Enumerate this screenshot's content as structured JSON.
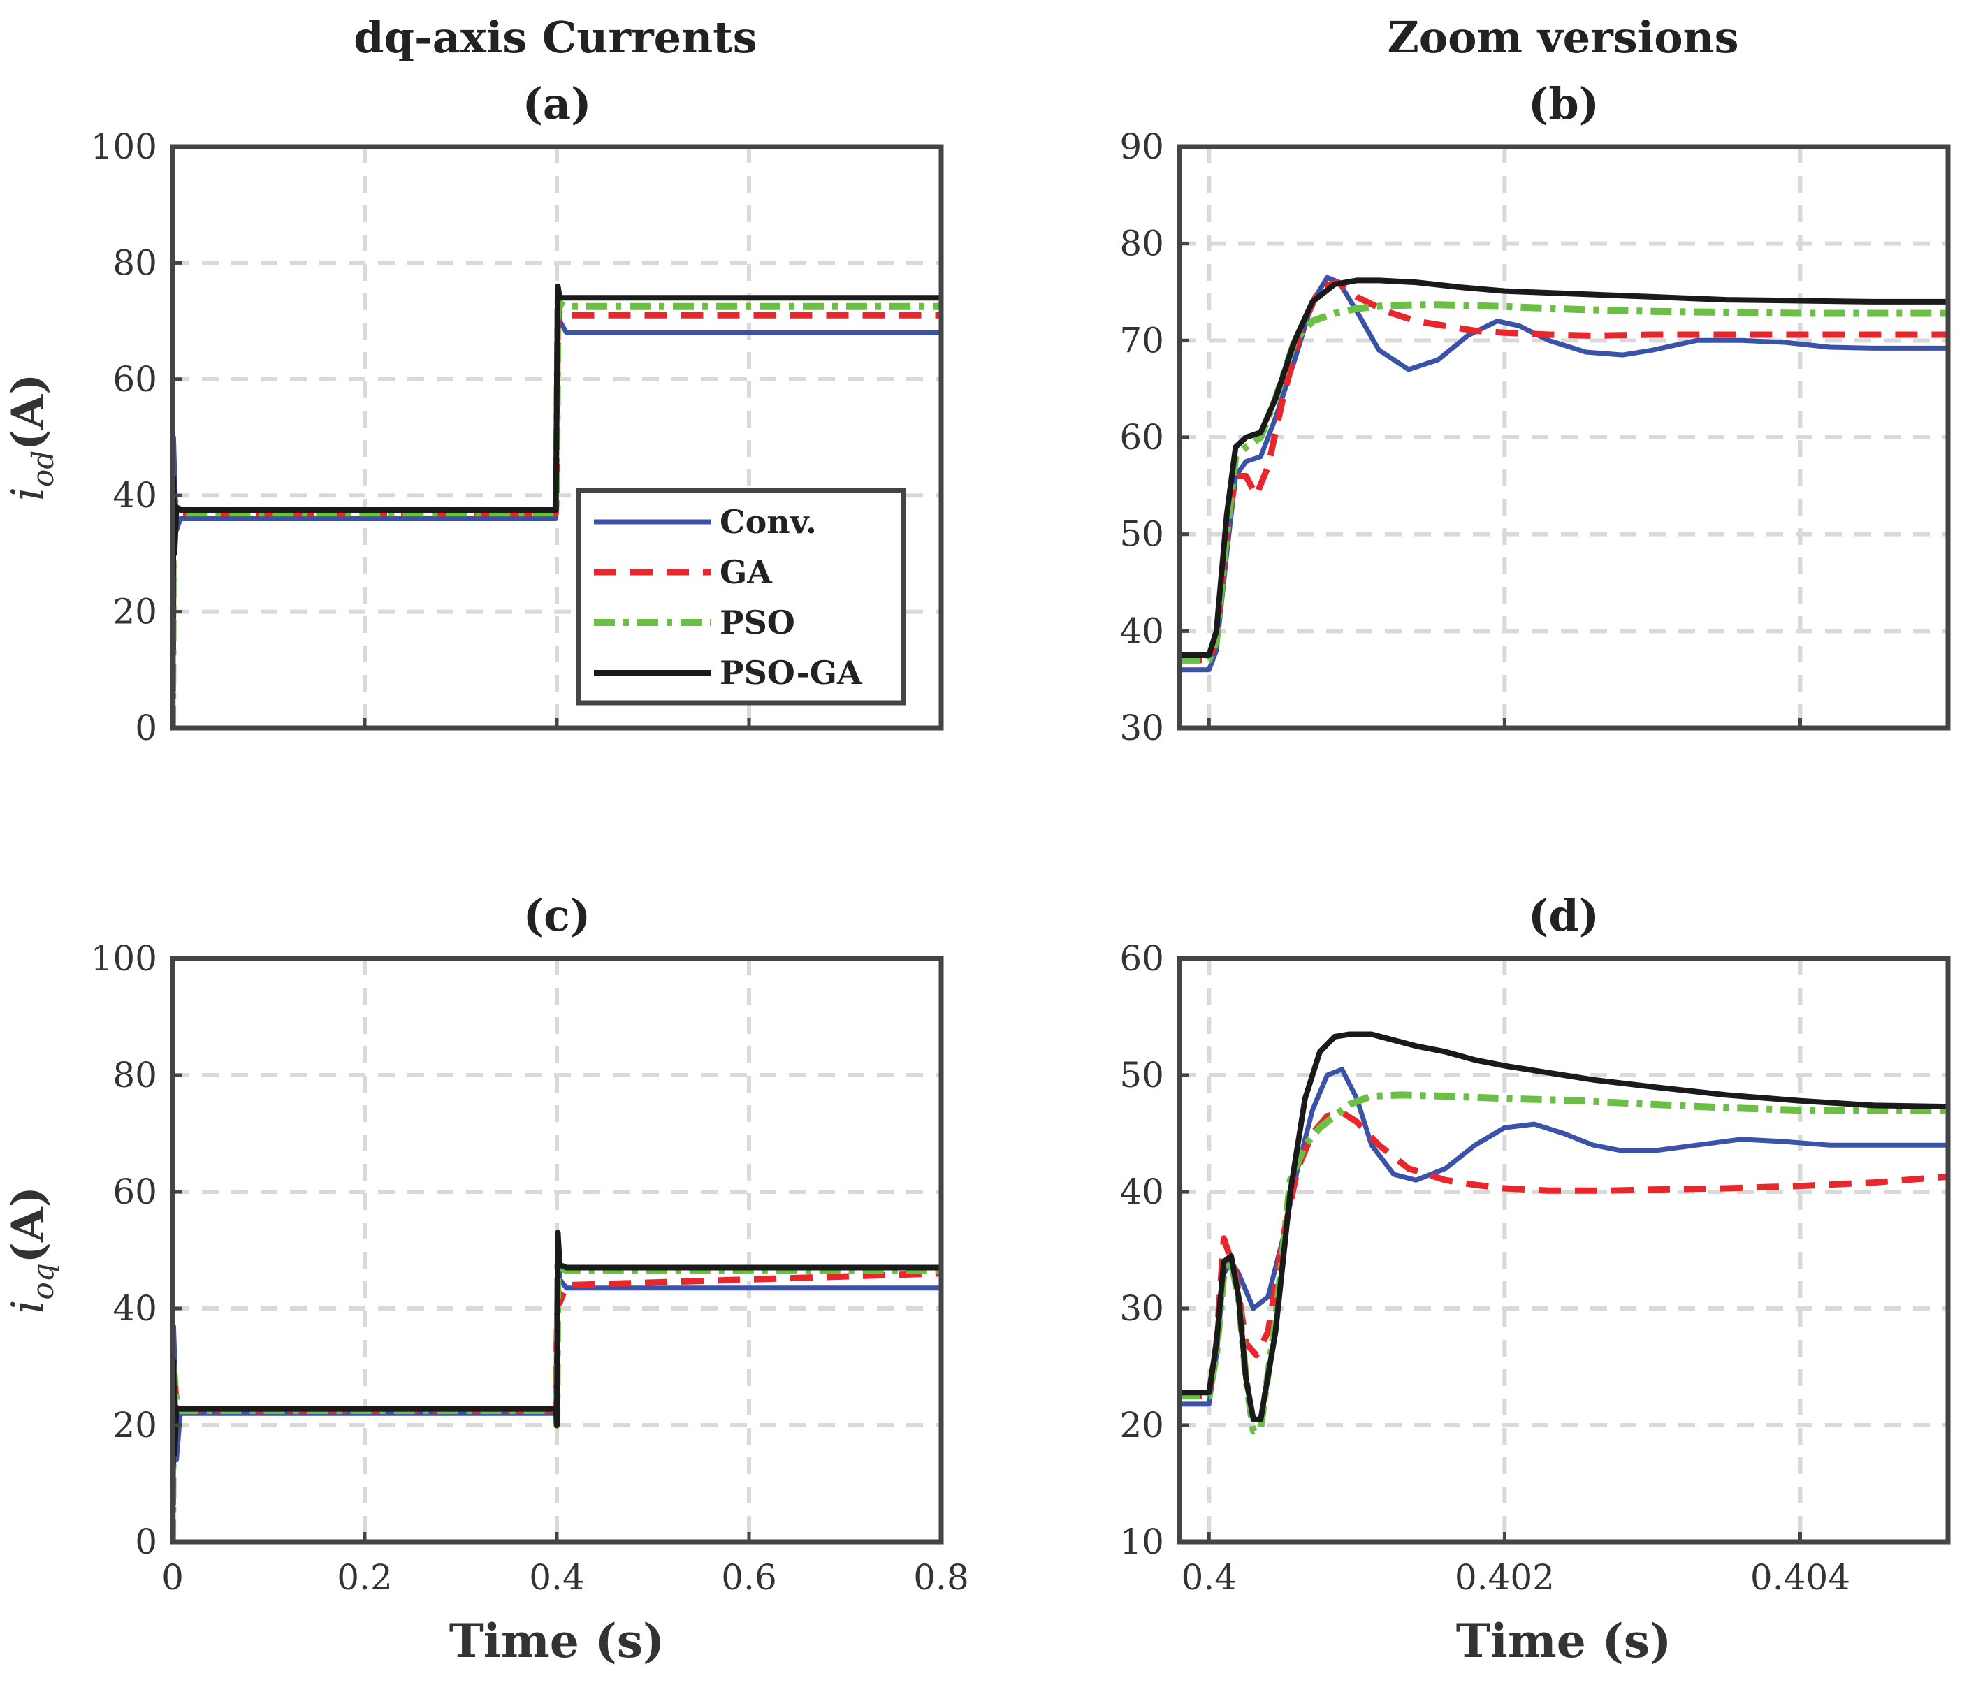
{
  "figure": {
    "column_titles": [
      "dq-axis Currents",
      "Zoom versions"
    ]
  },
  "colors": {
    "conv": "#3a52a8",
    "ga": "#e8262b",
    "pso": "#6cbf45",
    "psoga": "#1a1a1a"
  },
  "chart_data": [
    {
      "id": "a",
      "type": "line",
      "title": "(a)",
      "xlabel": "",
      "ylabel": {
        "var": "i",
        "sub": "od",
        "unit": "(A)"
      },
      "xlim": [
        0,
        0.8
      ],
      "ylim": [
        0,
        100
      ],
      "xticks": [
        0,
        0.2,
        0.4,
        0.6,
        0.8
      ],
      "xtick_labels": [
        "",
        "",
        "",
        "",
        ""
      ],
      "yticks": [
        0,
        20,
        40,
        60,
        80,
        100
      ],
      "ytick_labels": [
        "0",
        "20",
        "40",
        "60",
        "80",
        "100"
      ],
      "grid": true,
      "legend": {
        "position": "center-right",
        "entries": [
          "Conv.",
          "GA",
          "PSO",
          "PSO-GA"
        ]
      },
      "series": [
        {
          "name": "Conv.",
          "key": "conv",
          "x": [
            0,
            0.001,
            0.002,
            0.004,
            0.008,
            0.05,
            0.399,
            0.4,
            0.401,
            0.403,
            0.41,
            0.8
          ],
          "y": [
            0,
            50,
            44,
            34,
            36,
            36,
            36,
            50,
            75,
            70,
            68,
            68
          ]
        },
        {
          "name": "GA",
          "key": "ga",
          "x": [
            0,
            0.001,
            0.004,
            0.008,
            0.05,
            0.399,
            0.4,
            0.401,
            0.403,
            0.41,
            0.8
          ],
          "y": [
            0,
            40,
            38,
            37,
            37,
            37,
            48,
            74,
            71,
            71,
            71
          ]
        },
        {
          "name": "PSO",
          "key": "pso",
          "x": [
            0,
            0.001,
            0.004,
            0.008,
            0.05,
            0.399,
            0.4,
            0.401,
            0.403,
            0.41,
            0.8
          ],
          "y": [
            0,
            40,
            37,
            37,
            37,
            37,
            48,
            72,
            73,
            72.5,
            72.5
          ]
        },
        {
          "name": "PSO-GA",
          "key": "psoga",
          "x": [
            0,
            0.001,
            0.002,
            0.004,
            0.008,
            0.05,
            0.399,
            0.4,
            0.401,
            0.403,
            0.41,
            0.8
          ],
          "y": [
            0,
            43,
            30,
            38,
            37.5,
            37.5,
            37.5,
            60,
            76,
            74,
            74,
            74
          ]
        }
      ]
    },
    {
      "id": "b",
      "type": "line",
      "title": "(b)",
      "xlabel": "",
      "ylabel": null,
      "xlim": [
        0.3998,
        0.405
      ],
      "ylim": [
        30,
        90
      ],
      "xticks": [
        0.4,
        0.402,
        0.404
      ],
      "xtick_labels": [
        "",
        "",
        ""
      ],
      "yticks": [
        30,
        40,
        50,
        60,
        70,
        80,
        90
      ],
      "ytick_labels": [
        "30",
        "40",
        "50",
        "60",
        "70",
        "80",
        "90"
      ],
      "grid": true,
      "series": [
        {
          "name": "Conv.",
          "key": "conv",
          "x": [
            0.3998,
            0.4,
            0.40005,
            0.40012,
            0.40018,
            0.40025,
            0.40035,
            0.40045,
            0.40058,
            0.4007,
            0.4008,
            0.40088,
            0.401,
            0.40115,
            0.40135,
            0.40155,
            0.40175,
            0.40195,
            0.4021,
            0.4023,
            0.40255,
            0.4028,
            0.403,
            0.4033,
            0.4036,
            0.4039,
            0.4042,
            0.4045,
            0.4048,
            0.405
          ],
          "y": [
            36,
            36,
            38,
            48,
            56,
            57.5,
            58,
            62,
            68,
            74,
            76.5,
            76,
            73,
            69,
            67,
            68,
            70.5,
            72,
            71.5,
            70,
            68.8,
            68.5,
            69,
            70,
            70,
            69.8,
            69.3,
            69.2,
            69.2,
            69.2
          ]
        },
        {
          "name": "GA",
          "key": "ga",
          "x": [
            0.3998,
            0.4,
            0.40005,
            0.40012,
            0.40018,
            0.40025,
            0.40032,
            0.4004,
            0.4005,
            0.40062,
            0.40075,
            0.40087,
            0.401,
            0.4012,
            0.4014,
            0.4016,
            0.4018,
            0.402,
            0.4023,
            0.4026,
            0.403,
            0.4035,
            0.404,
            0.4045,
            0.405
          ],
          "y": [
            37,
            37,
            39,
            50,
            56,
            56,
            54,
            57,
            64,
            71,
            75.5,
            76,
            74.5,
            73,
            72,
            71.5,
            71,
            70.8,
            70.6,
            70.5,
            70.6,
            70.6,
            70.6,
            70.6,
            70.6
          ]
        },
        {
          "name": "PSO",
          "key": "pso",
          "x": [
            0.3998,
            0.4,
            0.40005,
            0.40012,
            0.40018,
            0.40025,
            0.40035,
            0.40045,
            0.40058,
            0.4007,
            0.40085,
            0.401,
            0.4012,
            0.4015,
            0.402,
            0.4025,
            0.403,
            0.4035,
            0.404,
            0.4045,
            0.405
          ],
          "y": [
            37,
            37,
            39,
            50,
            58,
            59,
            60,
            64,
            70,
            72,
            72.8,
            73.3,
            73.6,
            73.7,
            73.5,
            73.2,
            73,
            72.9,
            72.8,
            72.8,
            72.8
          ]
        },
        {
          "name": "PSO-GA",
          "key": "psoga",
          "x": [
            0.3998,
            0.4,
            0.40005,
            0.40012,
            0.40018,
            0.40025,
            0.40035,
            0.40045,
            0.40058,
            0.4007,
            0.40085,
            0.401,
            0.40115,
            0.4014,
            0.4017,
            0.402,
            0.4025,
            0.403,
            0.4035,
            0.404,
            0.4045,
            0.405
          ],
          "y": [
            37.5,
            37.5,
            40,
            52,
            59,
            60,
            60.5,
            64,
            70,
            74,
            75.8,
            76.2,
            76.2,
            76,
            75.5,
            75.1,
            74.8,
            74.5,
            74.2,
            74.1,
            74,
            74
          ]
        }
      ]
    },
    {
      "id": "c",
      "type": "line",
      "title": "(c)",
      "xlabel": "Time (s)",
      "ylabel": {
        "var": "i",
        "sub": "oq",
        "unit": "(A)"
      },
      "xlim": [
        0,
        0.8
      ],
      "ylim": [
        0,
        100
      ],
      "xticks": [
        0,
        0.2,
        0.4,
        0.6,
        0.8
      ],
      "xtick_labels": [
        "0",
        "0.2",
        "0.4",
        "0.6",
        "0.8"
      ],
      "yticks": [
        0,
        20,
        40,
        60,
        80,
        100
      ],
      "ytick_labels": [
        "0",
        "20",
        "40",
        "60",
        "80",
        "100"
      ],
      "grid": true,
      "series": [
        {
          "name": "Conv.",
          "key": "conv",
          "x": [
            0,
            0.001,
            0.002,
            0.004,
            0.008,
            0.05,
            0.399,
            0.4,
            0.401,
            0.403,
            0.41,
            0.8
          ],
          "y": [
            0,
            37,
            32,
            14,
            22,
            22,
            22,
            42,
            50,
            45,
            43.5,
            43.5
          ]
        },
        {
          "name": "GA",
          "key": "ga",
          "x": [
            0,
            0.001,
            0.004,
            0.008,
            0.05,
            0.399,
            0.4,
            0.401,
            0.403,
            0.41,
            0.8
          ],
          "y": [
            0,
            30,
            24,
            22.5,
            22.5,
            22.5,
            36,
            44,
            41,
            44,
            46
          ]
        },
        {
          "name": "PSO",
          "key": "pso",
          "x": [
            0,
            0.001,
            0.004,
            0.008,
            0.05,
            0.399,
            0.4,
            0.401,
            0.403,
            0.41,
            0.8
          ],
          "y": [
            0,
            30,
            24,
            22.5,
            22.5,
            22.5,
            20,
            48,
            47,
            46.5,
            46.5
          ]
        },
        {
          "name": "PSO-GA",
          "key": "psoga",
          "x": [
            0,
            0.001,
            0.002,
            0.004,
            0.008,
            0.05,
            0.399,
            0.4,
            0.401,
            0.403,
            0.41,
            0.8
          ],
          "y": [
            0,
            31,
            15,
            23,
            22.8,
            22.8,
            22.8,
            20,
            53,
            47.5,
            47,
            47
          ]
        }
      ]
    },
    {
      "id": "d",
      "type": "line",
      "title": "(d)",
      "xlabel": "Time (s)",
      "ylabel": null,
      "xlim": [
        0.3998,
        0.405
      ],
      "ylim": [
        10,
        60
      ],
      "xticks": [
        0.4,
        0.402,
        0.404
      ],
      "xtick_labels": [
        "0.4",
        "0.402",
        "0.404"
      ],
      "yticks": [
        10,
        20,
        30,
        40,
        50,
        60
      ],
      "ytick_labels": [
        "10",
        "20",
        "30",
        "40",
        "50",
        "60"
      ],
      "grid": true,
      "series": [
        {
          "name": "Conv.",
          "key": "conv",
          "x": [
            0.3998,
            0.4,
            0.40005,
            0.4001,
            0.40015,
            0.4002,
            0.4003,
            0.4004,
            0.4005,
            0.4006,
            0.4007,
            0.4008,
            0.4009,
            0.401,
            0.4011,
            0.40125,
            0.4014,
            0.4016,
            0.4018,
            0.402,
            0.4022,
            0.4024,
            0.4026,
            0.4028,
            0.403,
            0.4033,
            0.4036,
            0.4039,
            0.4042,
            0.4045,
            0.4048,
            0.405
          ],
          "y": [
            21.8,
            21.8,
            26,
            33,
            34,
            33,
            30,
            31,
            36,
            42,
            47,
            50,
            50.5,
            48,
            44,
            41.5,
            41,
            42,
            44,
            45.5,
            45.8,
            45,
            44,
            43.5,
            43.5,
            44,
            44.5,
            44.3,
            44,
            44,
            44,
            44
          ]
        },
        {
          "name": "GA",
          "key": "ga",
          "x": [
            0.3998,
            0.4,
            0.40005,
            0.4001,
            0.40018,
            0.40025,
            0.40032,
            0.4004,
            0.4005,
            0.4006,
            0.4007,
            0.4008,
            0.4009,
            0.401,
            0.40115,
            0.40135,
            0.4016,
            0.4018,
            0.402,
            0.4023,
            0.4027,
            0.403,
            0.4035,
            0.404,
            0.4045,
            0.405
          ],
          "y": [
            22.5,
            22.5,
            27,
            36,
            33,
            27,
            26,
            28,
            36,
            42,
            45,
            46.5,
            46.8,
            46,
            44,
            42,
            41,
            40.6,
            40.3,
            40.1,
            40.1,
            40.2,
            40.3,
            40.5,
            40.8,
            41.3
          ]
        },
        {
          "name": "PSO",
          "key": "pso",
          "x": [
            0.3998,
            0.4,
            0.40005,
            0.4001,
            0.40015,
            0.4002,
            0.40025,
            0.4003,
            0.40035,
            0.40045,
            0.40055,
            0.40065,
            0.40075,
            0.40085,
            0.40095,
            0.4011,
            0.4013,
            0.4016,
            0.402,
            0.4025,
            0.403,
            0.4035,
            0.404,
            0.4045,
            0.405
          ],
          "y": [
            22.5,
            22.5,
            26,
            33,
            34,
            31,
            24,
            19.5,
            19.8,
            29,
            41,
            44,
            45.5,
            46.5,
            47.5,
            48.2,
            48.3,
            48.2,
            48,
            47.8,
            47.5,
            47.2,
            47,
            47,
            47
          ]
        },
        {
          "name": "PSO-GA",
          "key": "psoga",
          "x": [
            0.3998,
            0.4,
            0.40005,
            0.4001,
            0.40015,
            0.4002,
            0.40025,
            0.4003,
            0.40035,
            0.40045,
            0.40055,
            0.40065,
            0.40075,
            0.40085,
            0.40095,
            0.4011,
            0.40125,
            0.4014,
            0.4016,
            0.4018,
            0.402,
            0.4023,
            0.4026,
            0.403,
            0.4035,
            0.404,
            0.4045,
            0.405
          ],
          "y": [
            22.8,
            22.8,
            27,
            34,
            34.5,
            31,
            24,
            20.5,
            20.5,
            28,
            40,
            48,
            52,
            53.3,
            53.5,
            53.5,
            53,
            52.5,
            52,
            51.3,
            50.8,
            50.2,
            49.6,
            49,
            48.3,
            47.8,
            47.4,
            47.3
          ]
        }
      ]
    }
  ]
}
